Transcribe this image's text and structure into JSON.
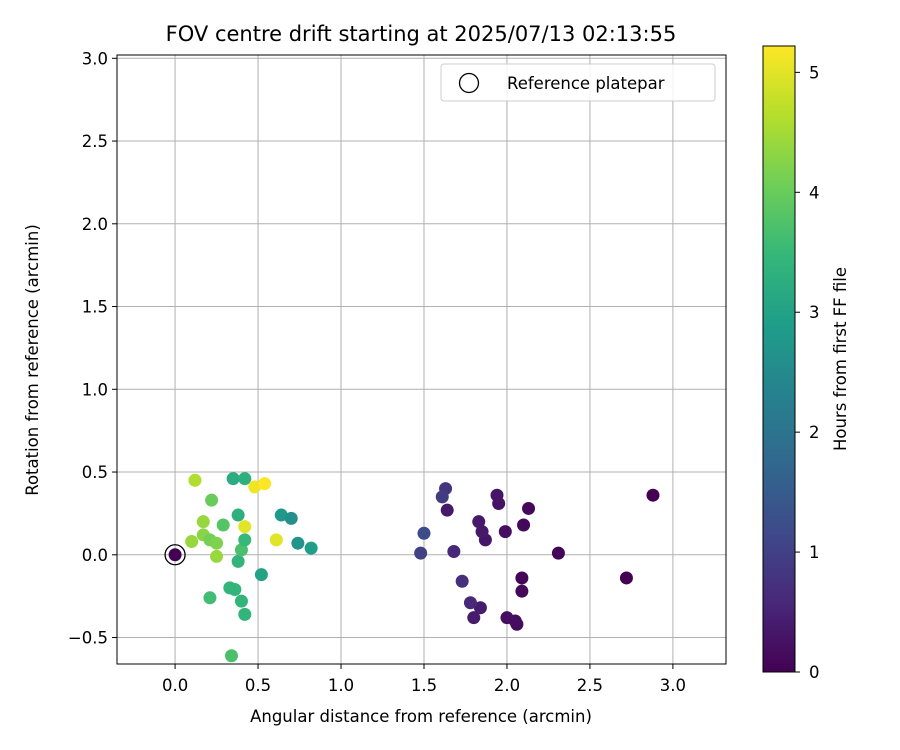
{
  "chart_data": {
    "type": "scatter",
    "title": "FOV centre drift starting at 2025/07/13 02:13:55",
    "xlabel": "Angular distance from reference (arcmin)",
    "ylabel": "Rotation from reference (arcmin)",
    "xlim": [
      -0.35,
      3.32
    ],
    "ylim": [
      -0.66,
      3.02
    ],
    "xticks": [
      0.0,
      0.5,
      1.0,
      1.5,
      2.0,
      2.5,
      3.0
    ],
    "xtick_labels": [
      "0.0",
      "0.5",
      "1.0",
      "1.5",
      "2.0",
      "2.5",
      "3.0"
    ],
    "yticks": [
      -0.5,
      0.0,
      0.5,
      1.0,
      1.5,
      2.0,
      2.5,
      3.0
    ],
    "ytick_labels": [
      "−0.5",
      "0.0",
      "0.5",
      "1.0",
      "1.5",
      "2.0",
      "2.5",
      "3.0"
    ],
    "grid": true,
    "legend": {
      "placement": "top-right",
      "entries": [
        "Reference platepar"
      ]
    },
    "colorbar": {
      "label": "Hours from first FF file",
      "range": [
        0,
        5.22
      ],
      "ticks": [
        0,
        1,
        2,
        3,
        4,
        5
      ],
      "tick_labels": [
        "0",
        "1",
        "2",
        "3",
        "4",
        "5"
      ],
      "colormap": "viridis",
      "stops": [
        "#440154",
        "#482878",
        "#3e4a89",
        "#31688e",
        "#26828e",
        "#1f9e89",
        "#35b779",
        "#6ece58",
        "#b5de2b",
        "#fde725"
      ]
    },
    "reference_point": {
      "x": 0.0,
      "y": 0.0
    },
    "series": [
      {
        "points": [
          {
            "x": 2.88,
            "y": 0.36,
            "c": 0.0
          },
          {
            "x": 2.72,
            "y": -0.14,
            "c": 0.0
          },
          {
            "x": 2.31,
            "y": 0.01,
            "c": 0.05
          },
          {
            "x": 2.13,
            "y": 0.28,
            "c": 0.1
          },
          {
            "x": 2.1,
            "y": 0.18,
            "c": 0.12
          },
          {
            "x": 2.09,
            "y": -0.14,
            "c": 0.08
          },
          {
            "x": 2.09,
            "y": -0.22,
            "c": 0.1
          },
          {
            "x": 2.06,
            "y": -0.42,
            "c": 0.15
          },
          {
            "x": 2.05,
            "y": -0.4,
            "c": 0.18
          },
          {
            "x": 2.0,
            "y": -0.38,
            "c": 0.2
          },
          {
            "x": 1.99,
            "y": 0.14,
            "c": 0.2
          },
          {
            "x": 1.95,
            "y": 0.31,
            "c": 0.25
          },
          {
            "x": 1.94,
            "y": 0.36,
            "c": 0.3
          },
          {
            "x": 1.87,
            "y": 0.09,
            "c": 0.3
          },
          {
            "x": 1.85,
            "y": 0.14,
            "c": 0.35
          },
          {
            "x": 1.83,
            "y": 0.2,
            "c": 0.35
          },
          {
            "x": 1.84,
            "y": -0.32,
            "c": 0.4
          },
          {
            "x": 1.8,
            "y": -0.38,
            "c": 0.4
          },
          {
            "x": 1.78,
            "y": -0.29,
            "c": 0.6
          },
          {
            "x": 1.73,
            "y": -0.16,
            "c": 0.7
          },
          {
            "x": 1.68,
            "y": 0.02,
            "c": 0.6
          },
          {
            "x": 1.64,
            "y": 0.27,
            "c": 0.35
          },
          {
            "x": 1.63,
            "y": 0.4,
            "c": 0.8
          },
          {
            "x": 1.61,
            "y": 0.35,
            "c": 0.9
          },
          {
            "x": 1.5,
            "y": 0.13,
            "c": 1.2
          },
          {
            "x": 1.48,
            "y": 0.01,
            "c": 1.0
          },
          {
            "x": 0.0,
            "y": 0.0,
            "c": 0.0
          },
          {
            "x": 0.12,
            "y": 0.45,
            "c": 4.6
          },
          {
            "x": 0.1,
            "y": 0.08,
            "c": 4.4
          },
          {
            "x": 0.17,
            "y": 0.2,
            "c": 4.4
          },
          {
            "x": 0.17,
            "y": 0.12,
            "c": 4.3
          },
          {
            "x": 0.21,
            "y": 0.09,
            "c": 4.1
          },
          {
            "x": 0.22,
            "y": 0.33,
            "c": 4.0
          },
          {
            "x": 0.25,
            "y": 0.07,
            "c": 4.2
          },
          {
            "x": 0.25,
            "y": -0.01,
            "c": 4.4
          },
          {
            "x": 0.29,
            "y": 0.18,
            "c": 3.8
          },
          {
            "x": 0.21,
            "y": -0.26,
            "c": 3.6
          },
          {
            "x": 0.33,
            "y": -0.2,
            "c": 3.4
          },
          {
            "x": 0.36,
            "y": -0.21,
            "c": 3.4
          },
          {
            "x": 0.35,
            "y": 0.46,
            "c": 3.2
          },
          {
            "x": 0.38,
            "y": 0.24,
            "c": 3.3
          },
          {
            "x": 0.38,
            "y": -0.04,
            "c": 3.4
          },
          {
            "x": 0.4,
            "y": 0.03,
            "c": 3.7
          },
          {
            "x": 0.42,
            "y": 0.09,
            "c": 3.5
          },
          {
            "x": 0.4,
            "y": -0.28,
            "c": 3.4
          },
          {
            "x": 0.42,
            "y": -0.36,
            "c": 3.4
          },
          {
            "x": 0.42,
            "y": 0.46,
            "c": 3.3
          },
          {
            "x": 0.42,
            "y": 0.17,
            "c": 5.0
          },
          {
            "x": 0.48,
            "y": 0.41,
            "c": 5.1
          },
          {
            "x": 0.54,
            "y": 0.43,
            "c": 5.2
          },
          {
            "x": 0.52,
            "y": -0.12,
            "c": 3.0
          },
          {
            "x": 0.61,
            "y": 0.09,
            "c": 5.0
          },
          {
            "x": 0.64,
            "y": 0.24,
            "c": 2.8
          },
          {
            "x": 0.7,
            "y": 0.22,
            "c": 2.6
          },
          {
            "x": 0.74,
            "y": 0.07,
            "c": 2.7
          },
          {
            "x": 0.82,
            "y": 0.04,
            "c": 2.9
          },
          {
            "x": 0.34,
            "y": -0.61,
            "c": 3.7
          }
        ]
      }
    ]
  }
}
